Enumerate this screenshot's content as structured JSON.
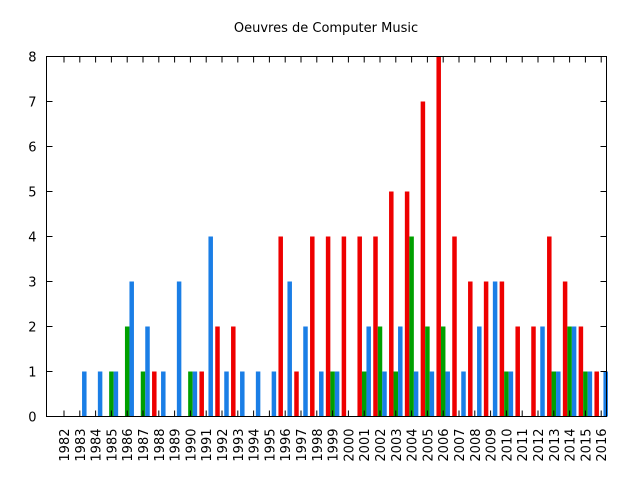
{
  "chart_data": {
    "type": "bar",
    "title": "Oeuvres de Computer Music",
    "xlabel": "",
    "ylabel": "",
    "ylim": [
      0,
      8
    ],
    "yticks": [
      0,
      1,
      2,
      3,
      4,
      5,
      6,
      7,
      8
    ],
    "grid": false,
    "legend": "none",
    "categories": [
      "1982",
      "1983",
      "1984",
      "1985",
      "1986",
      "1987",
      "1988",
      "1989",
      "1990",
      "1991",
      "1992",
      "1993",
      "1994",
      "1995",
      "1996",
      "1997",
      "1998",
      "1999",
      "2000",
      "2001",
      "2002",
      "2003",
      "2004",
      "2005",
      "2006",
      "2007",
      "2008",
      "2009",
      "2010",
      "2011",
      "2012",
      "2013",
      "2014",
      "2015",
      "2016"
    ],
    "series": [
      {
        "color": "#ee0000",
        "values": [
          0,
          0,
          0,
          0,
          0,
          0,
          1,
          0,
          0,
          1,
          2,
          2,
          0,
          0,
          4,
          1,
          4,
          4,
          4,
          4,
          4,
          5,
          5,
          7,
          8,
          4,
          3,
          3,
          3,
          2,
          2,
          4,
          3,
          2,
          1
        ]
      },
      {
        "color": "#00a000",
        "values": [
          0,
          0,
          0,
          1,
          2,
          1,
          0,
          0,
          1,
          0,
          0,
          0,
          0,
          0,
          0,
          0,
          0,
          1,
          0,
          1,
          2,
          1,
          4,
          2,
          2,
          0,
          0,
          0,
          1,
          0,
          0,
          1,
          2,
          1,
          0
        ]
      },
      {
        "color": "#1a7ee6",
        "values": [
          0,
          1,
          1,
          1,
          3,
          2,
          1,
          3,
          1,
          4,
          1,
          1,
          1,
          1,
          3,
          2,
          1,
          1,
          0,
          2,
          1,
          2,
          1,
          1,
          1,
          1,
          2,
          3,
          1,
          0,
          2,
          1,
          2,
          1,
          1
        ]
      }
    ]
  }
}
